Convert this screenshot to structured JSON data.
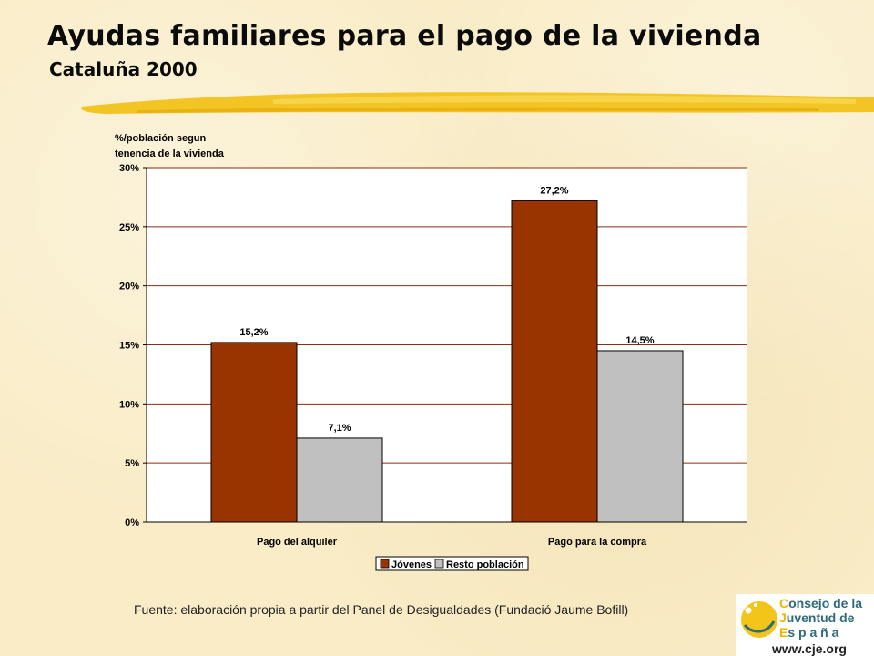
{
  "header": {
    "title": "Ayudas familiares para el pago de la vivienda",
    "subtitle": "Cataluña 2000"
  },
  "chart_data": {
    "type": "bar",
    "title": "",
    "ylabel_lines": [
      "%/población segun",
      "tenencia de la vivienda"
    ],
    "categories": [
      "Pago del alquiler",
      "Pago para la compra"
    ],
    "series": [
      {
        "name": "Jóvenes",
        "values": [
          15.2,
          27.2
        ],
        "labels": [
          "15,2%",
          "27,2%"
        ],
        "color": "#993300"
      },
      {
        "name": "Resto población",
        "values": [
          7.1,
          14.5
        ],
        "labels": [
          "7,1%",
          "14,5%"
        ],
        "color": "#c0c0c0"
      }
    ],
    "ylim": [
      0,
      30
    ],
    "yticks": [
      0,
      5,
      10,
      15,
      20,
      25,
      30
    ],
    "ytick_labels": [
      "0%",
      "5%",
      "10%",
      "15%",
      "20%",
      "25%",
      "30%"
    ],
    "grid": true,
    "legend": "bottom-center"
  },
  "footer": {
    "source": "Fuente: elaboración propia a partir del Panel de Desigualdades (Fundació Jaume Bofill)"
  },
  "logo": {
    "line1_initial": "C",
    "line1_rest": "onsejo de la",
    "line2_initial": "J",
    "line2_rest": "uventud de",
    "line3_initial": "E",
    "line3_rest": "s p a ñ a",
    "url": "www.cje.org"
  },
  "colors": {
    "accent_brush": "#f2c21a",
    "plot_grid": "#8b2e12",
    "logo_text": "#2e6b78",
    "logo_initial": "#f0b400"
  }
}
